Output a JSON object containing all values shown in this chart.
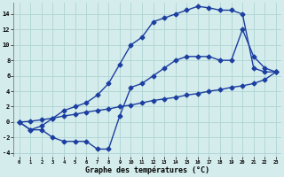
{
  "line1_x": [
    0,
    1,
    2,
    3,
    4,
    5,
    6,
    7,
    8,
    9,
    10,
    11,
    12,
    13,
    14,
    15,
    16,
    17,
    18,
    19,
    20,
    21,
    22,
    23
  ],
  "line1_y": [
    0,
    -1,
    -0.5,
    0.5,
    1.5,
    2.0,
    2.5,
    3.5,
    5.0,
    7.5,
    10.0,
    11.0,
    13.0,
    13.5,
    14.0,
    14.5,
    15.0,
    14.8,
    14.5,
    14.5,
    14.0,
    7.0,
    6.5,
    6.5
  ],
  "line2_x": [
    0,
    1,
    2,
    3,
    4,
    5,
    6,
    7,
    8,
    9,
    10,
    11,
    12,
    13,
    14,
    15,
    16,
    17,
    18,
    19,
    20,
    21,
    22,
    23
  ],
  "line2_y": [
    0,
    -1,
    -1.0,
    -2.0,
    -2.5,
    -2.5,
    -2.5,
    -3.5,
    -3.5,
    0.8,
    4.5,
    5.0,
    6.0,
    7.0,
    8.0,
    8.5,
    8.5,
    8.5,
    8.0,
    8.0,
    12.0,
    8.5,
    7.0,
    6.5
  ],
  "line3_x": [
    0,
    1,
    2,
    3,
    4,
    5,
    6,
    7,
    8,
    9,
    10,
    11,
    12,
    13,
    14,
    15,
    16,
    17,
    18,
    19,
    20,
    21,
    22,
    23
  ],
  "line3_y": [
    0,
    0.1,
    0.3,
    0.5,
    0.8,
    1.0,
    1.3,
    1.5,
    1.7,
    2.0,
    2.2,
    2.5,
    2.8,
    3.0,
    3.2,
    3.5,
    3.7,
    4.0,
    4.2,
    4.5,
    4.7,
    5.0,
    5.5,
    6.5
  ],
  "line_color": "#1c3fa0",
  "bg_color": "#d4ecec",
  "grid_color": "#b0d4d4",
  "xlabel": "Graphe des températures (°C)",
  "xlim": [
    -0.5,
    23.5
  ],
  "ylim": [
    -4.5,
    15.5
  ],
  "xticks": [
    0,
    1,
    2,
    3,
    4,
    5,
    6,
    7,
    8,
    9,
    10,
    11,
    12,
    13,
    14,
    15,
    16,
    17,
    18,
    19,
    20,
    21,
    22,
    23
  ],
  "yticks": [
    -4,
    -2,
    0,
    2,
    4,
    6,
    8,
    10,
    12,
    14
  ],
  "marker": "D",
  "markersize": 2.5,
  "linewidth": 1.0
}
